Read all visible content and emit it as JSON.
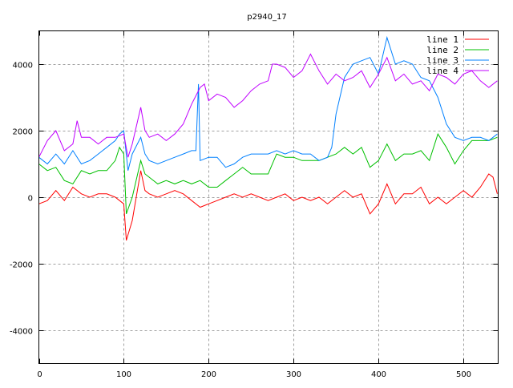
{
  "chart_data": {
    "type": "line",
    "title": "p2940_17",
    "xlabel": "",
    "ylabel": "",
    "xlim": [
      0,
      541
    ],
    "ylim": [
      -5000,
      5000
    ],
    "xticks": [
      0,
      100,
      200,
      300,
      400,
      500
    ],
    "yticks": [
      -4000,
      -2000,
      0,
      2000,
      4000
    ],
    "grid": true,
    "legend": "top-right",
    "series": [
      {
        "name": "line 1",
        "color": "#ff0000",
        "points": [
          [
            0,
            -200
          ],
          [
            10,
            -100
          ],
          [
            20,
            200
          ],
          [
            30,
            -100
          ],
          [
            40,
            300
          ],
          [
            50,
            100
          ],
          [
            60,
            0
          ],
          [
            70,
            100
          ],
          [
            80,
            100
          ],
          [
            90,
            0
          ],
          [
            100,
            -200
          ],
          [
            103,
            -1300
          ],
          [
            110,
            -700
          ],
          [
            120,
            800
          ],
          [
            125,
            200
          ],
          [
            130,
            100
          ],
          [
            140,
            0
          ],
          [
            150,
            100
          ],
          [
            160,
            200
          ],
          [
            170,
            100
          ],
          [
            180,
            -100
          ],
          [
            190,
            -300
          ],
          [
            200,
            -200
          ],
          [
            210,
            -100
          ],
          [
            220,
            0
          ],
          [
            230,
            100
          ],
          [
            240,
            0
          ],
          [
            250,
            100
          ],
          [
            260,
            0
          ],
          [
            270,
            -100
          ],
          [
            280,
            0
          ],
          [
            290,
            100
          ],
          [
            300,
            -100
          ],
          [
            310,
            0
          ],
          [
            320,
            -100
          ],
          [
            330,
            0
          ],
          [
            340,
            -200
          ],
          [
            350,
            0
          ],
          [
            360,
            200
          ],
          [
            370,
            0
          ],
          [
            380,
            100
          ],
          [
            390,
            -500
          ],
          [
            400,
            -200
          ],
          [
            410,
            400
          ],
          [
            420,
            -200
          ],
          [
            430,
            100
          ],
          [
            440,
            100
          ],
          [
            450,
            300
          ],
          [
            460,
            -200
          ],
          [
            470,
            0
          ],
          [
            480,
            -200
          ],
          [
            490,
            0
          ],
          [
            500,
            200
          ],
          [
            510,
            0
          ],
          [
            520,
            300
          ],
          [
            530,
            700
          ],
          [
            535,
            600
          ],
          [
            540,
            100
          ]
        ]
      },
      {
        "name": "line 2",
        "color": "#00c000",
        "points": [
          [
            0,
            1000
          ],
          [
            10,
            800
          ],
          [
            20,
            900
          ],
          [
            30,
            500
          ],
          [
            40,
            400
          ],
          [
            50,
            800
          ],
          [
            60,
            700
          ],
          [
            70,
            800
          ],
          [
            80,
            800
          ],
          [
            90,
            1100
          ],
          [
            95,
            1500
          ],
          [
            100,
            1300
          ],
          [
            103,
            -500
          ],
          [
            110,
            0
          ],
          [
            120,
            1100
          ],
          [
            125,
            700
          ],
          [
            130,
            600
          ],
          [
            140,
            400
          ],
          [
            150,
            500
          ],
          [
            160,
            400
          ],
          [
            170,
            500
          ],
          [
            180,
            400
          ],
          [
            190,
            500
          ],
          [
            200,
            300
          ],
          [
            210,
            300
          ],
          [
            220,
            500
          ],
          [
            230,
            700
          ],
          [
            240,
            900
          ],
          [
            250,
            700
          ],
          [
            260,
            700
          ],
          [
            270,
            700
          ],
          [
            280,
            1300
          ],
          [
            290,
            1200
          ],
          [
            300,
            1200
          ],
          [
            310,
            1100
          ],
          [
            320,
            1100
          ],
          [
            330,
            1100
          ],
          [
            340,
            1200
          ],
          [
            350,
            1300
          ],
          [
            360,
            1500
          ],
          [
            370,
            1300
          ],
          [
            380,
            1500
          ],
          [
            390,
            900
          ],
          [
            400,
            1100
          ],
          [
            410,
            1600
          ],
          [
            420,
            1100
          ],
          [
            430,
            1300
          ],
          [
            440,
            1300
          ],
          [
            450,
            1400
          ],
          [
            460,
            1100
          ],
          [
            470,
            1900
          ],
          [
            480,
            1500
          ],
          [
            490,
            1000
          ],
          [
            500,
            1400
          ],
          [
            510,
            1700
          ],
          [
            520,
            1700
          ],
          [
            530,
            1700
          ],
          [
            540,
            1800
          ]
        ]
      },
      {
        "name": "line 3",
        "color": "#0080ff",
        "points": [
          [
            0,
            1200
          ],
          [
            10,
            1000
          ],
          [
            20,
            1300
          ],
          [
            30,
            1000
          ],
          [
            40,
            1400
          ],
          [
            50,
            1000
          ],
          [
            60,
            1100
          ],
          [
            70,
            1300
          ],
          [
            80,
            1500
          ],
          [
            90,
            1700
          ],
          [
            95,
            1900
          ],
          [
            100,
            2000
          ],
          [
            105,
            800
          ],
          [
            110,
            1300
          ],
          [
            120,
            1800
          ],
          [
            125,
            1300
          ],
          [
            130,
            1100
          ],
          [
            140,
            1000
          ],
          [
            150,
            1100
          ],
          [
            160,
            1200
          ],
          [
            170,
            1300
          ],
          [
            180,
            1400
          ],
          [
            185,
            1400
          ],
          [
            188,
            3400
          ],
          [
            190,
            1100
          ],
          [
            200,
            1200
          ],
          [
            210,
            1200
          ],
          [
            220,
            900
          ],
          [
            230,
            1000
          ],
          [
            240,
            1200
          ],
          [
            250,
            1300
          ],
          [
            260,
            1300
          ],
          [
            270,
            1300
          ],
          [
            280,
            1400
          ],
          [
            290,
            1300
          ],
          [
            300,
            1400
          ],
          [
            310,
            1300
          ],
          [
            320,
            1300
          ],
          [
            330,
            1100
          ],
          [
            340,
            1200
          ],
          [
            345,
            1500
          ],
          [
            350,
            2500
          ],
          [
            360,
            3600
          ],
          [
            370,
            4000
          ],
          [
            380,
            4100
          ],
          [
            390,
            4200
          ],
          [
            400,
            3700
          ],
          [
            410,
            4800
          ],
          [
            420,
            4000
          ],
          [
            430,
            4100
          ],
          [
            440,
            4000
          ],
          [
            450,
            3600
          ],
          [
            460,
            3500
          ],
          [
            470,
            3000
          ],
          [
            480,
            2200
          ],
          [
            490,
            1800
          ],
          [
            500,
            1700
          ],
          [
            510,
            1800
          ],
          [
            520,
            1800
          ],
          [
            530,
            1700
          ],
          [
            540,
            1900
          ]
        ]
      },
      {
        "name": "line 4",
        "color": "#c000ff",
        "points": [
          [
            0,
            1200
          ],
          [
            10,
            1700
          ],
          [
            20,
            2000
          ],
          [
            30,
            1400
          ],
          [
            40,
            1600
          ],
          [
            45,
            2300
          ],
          [
            50,
            1800
          ],
          [
            60,
            1800
          ],
          [
            70,
            1600
          ],
          [
            80,
            1800
          ],
          [
            90,
            1800
          ],
          [
            100,
            1900
          ],
          [
            105,
            1200
          ],
          [
            110,
            1600
          ],
          [
            120,
            2700
          ],
          [
            125,
            2000
          ],
          [
            130,
            1800
          ],
          [
            140,
            1900
          ],
          [
            150,
            1700
          ],
          [
            160,
            1900
          ],
          [
            170,
            2200
          ],
          [
            180,
            2800
          ],
          [
            190,
            3300
          ],
          [
            195,
            3400
          ],
          [
            200,
            2900
          ],
          [
            210,
            3100
          ],
          [
            220,
            3000
          ],
          [
            230,
            2700
          ],
          [
            240,
            2900
          ],
          [
            250,
            3200
          ],
          [
            260,
            3400
          ],
          [
            270,
            3500
          ],
          [
            275,
            4000
          ],
          [
            280,
            4000
          ],
          [
            290,
            3900
          ],
          [
            300,
            3600
          ],
          [
            310,
            3800
          ],
          [
            320,
            4300
          ],
          [
            330,
            3800
          ],
          [
            340,
            3400
          ],
          [
            350,
            3700
          ],
          [
            360,
            3500
          ],
          [
            370,
            3600
          ],
          [
            380,
            3800
          ],
          [
            390,
            3300
          ],
          [
            400,
            3700
          ],
          [
            410,
            4200
          ],
          [
            420,
            3500
          ],
          [
            430,
            3700
          ],
          [
            440,
            3400
          ],
          [
            450,
            3500
          ],
          [
            460,
            3200
          ],
          [
            470,
            3700
          ],
          [
            480,
            3600
          ],
          [
            490,
            3400
          ],
          [
            500,
            3700
          ],
          [
            510,
            3800
          ],
          [
            520,
            3500
          ],
          [
            530,
            3300
          ],
          [
            540,
            3500
          ]
        ]
      }
    ]
  }
}
